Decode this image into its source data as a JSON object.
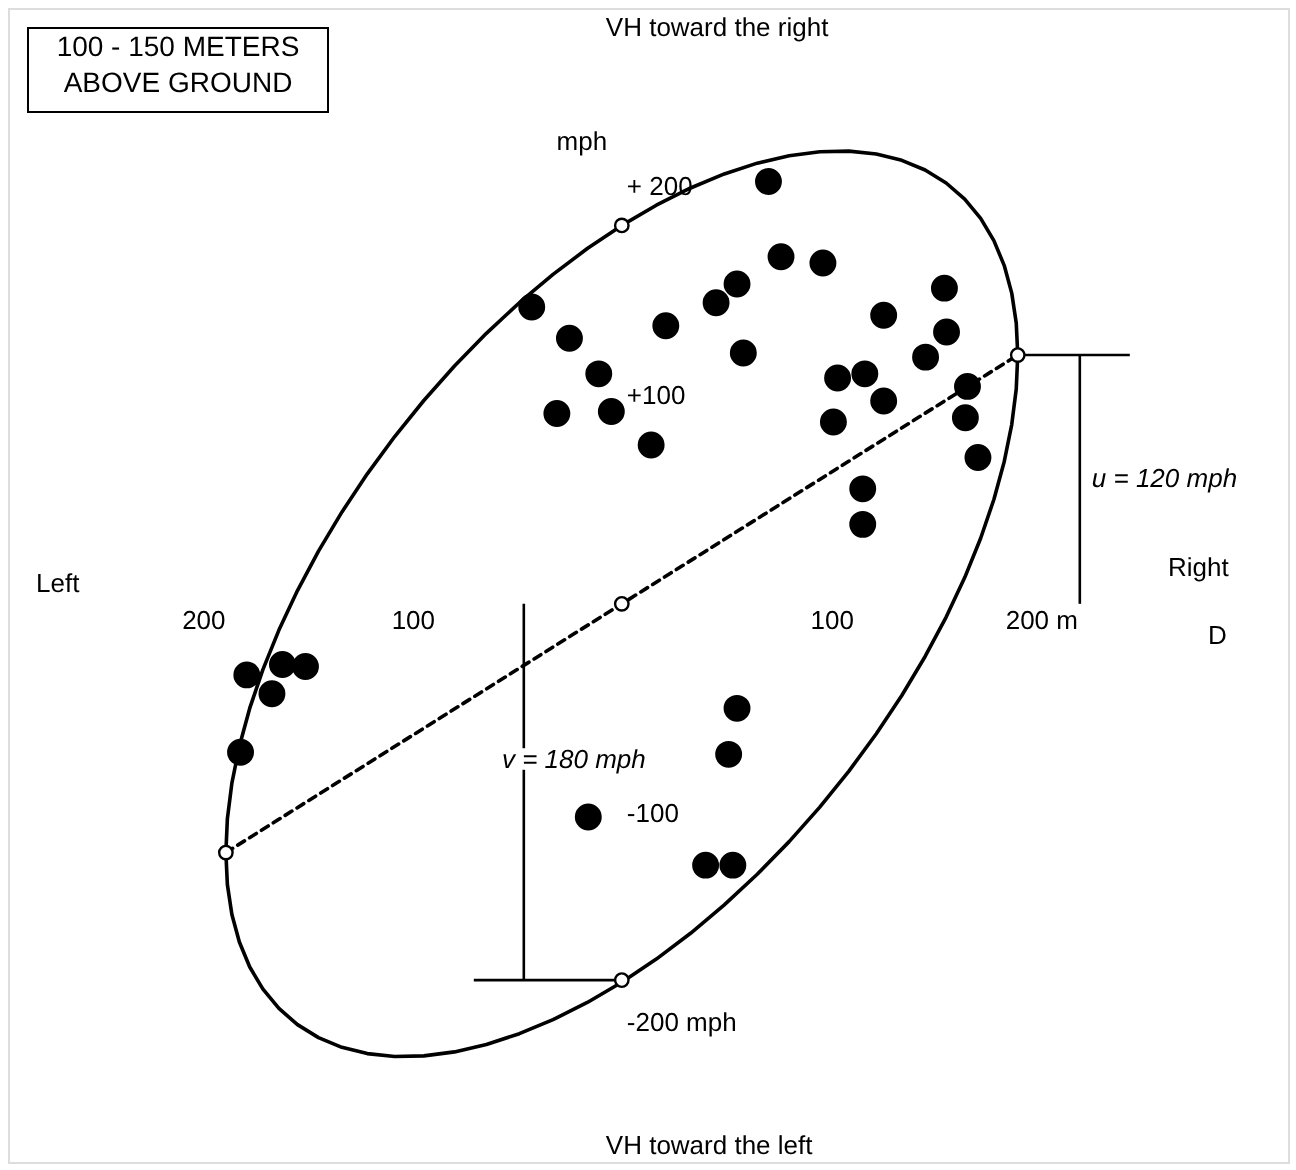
{
  "chart_data": {
    "type": "scatter",
    "title": "100 - 150 METERS ABOVE GROUND",
    "ylabel": "VH toward the right",
    "xlim": [
      -293,
      318
    ],
    "ylim": [
      -267,
      285
    ],
    "xticks": [
      {
        "value": -200,
        "label": "200"
      },
      {
        "value": -100,
        "label": "100"
      },
      100,
      {
        "value": 200,
        "label": "200 m"
      }
    ],
    "yticks": [
      {
        "value": 200,
        "label": "+ 200"
      },
      {
        "value": 100,
        "label": "+100"
      },
      -100,
      {
        "value": -200,
        "label": "-200 mph"
      }
    ],
    "grid": false,
    "annotations": [
      "mph",
      "Left",
      "Right",
      "D",
      "VH toward the left",
      "u = 120 mph",
      "v = 180 mph"
    ],
    "series": [
      {
        "marker": "circle",
        "color": "#000000",
        "x": [
          70,
          76,
          96,
          -43,
          -25,
          -11,
          -31,
          -5,
          14,
          21,
          45,
          55,
          58,
          125,
          103,
          116,
          125,
          101,
          145,
          154,
          155,
          165,
          164,
          170,
          115,
          115,
          -179,
          -162,
          -151,
          -167,
          -182,
          55,
          51,
          -16,
          40,
          53
        ],
        "values": [
          202,
          166,
          163,
          142,
          127,
          110,
          91,
          92,
          76,
          133,
          144,
          153,
          120,
          138,
          108,
          110,
          97,
          87,
          118,
          151,
          130,
          104,
          89,
          70,
          55,
          38,
          -34,
          -29,
          -30,
          -43,
          -71,
          -50,
          -72,
          -102,
          -125,
          -125
        ]
      },
      {
        "type": "line",
        "line_style": "dashed",
        "color": "#000000",
        "x": [
          -189,
          189
        ],
        "values": [
          -119,
          119
        ]
      },
      {
        "marker": "circle",
        "color": "#ffffff",
        "x": [
          0,
          0,
          0,
          189,
          -189
        ],
        "values": [
          181,
          0,
          -180,
          119,
          -119
        ]
      }
    ]
  }
}
